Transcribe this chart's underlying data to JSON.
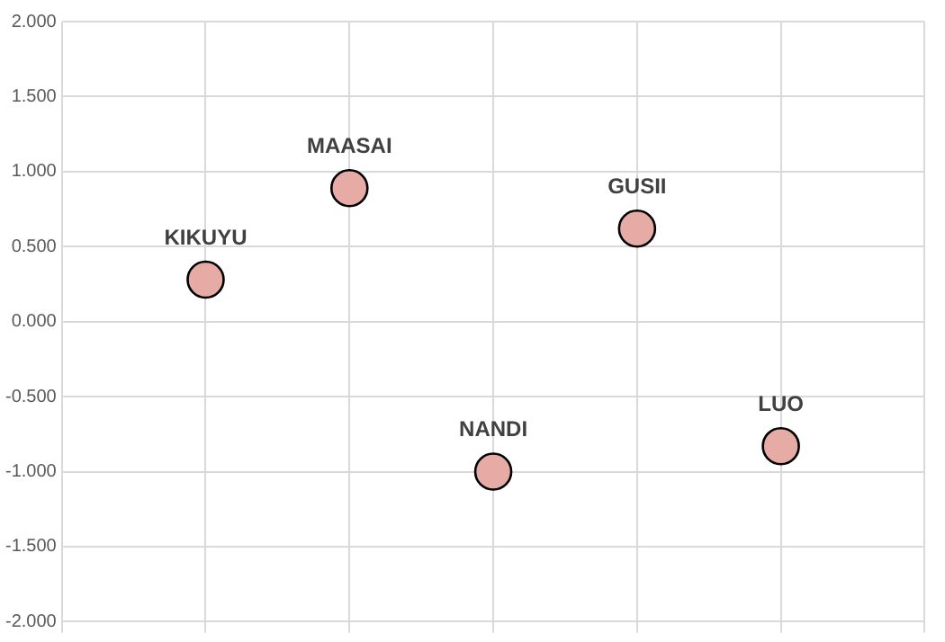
{
  "chart_data": {
    "type": "scatter",
    "categories": [
      null,
      null,
      null,
      null,
      null
    ],
    "series": [
      {
        "name": "KIKUYU",
        "color": "#e6aba4",
        "values": [
          0.28,
          null,
          null,
          null,
          null
        ]
      },
      {
        "name": "MAASAI",
        "color": "#e6aba4",
        "values": [
          null,
          0.89,
          null,
          null,
          null
        ]
      },
      {
        "name": "NANDI",
        "color": "#e6aba4",
        "values": [
          null,
          null,
          -1.0,
          null,
          null
        ]
      },
      {
        "name": "GUSII",
        "color": "#e6aba4",
        "values": [
          null,
          null,
          null,
          0.62,
          null
        ]
      },
      {
        "name": "LUO",
        "color": "#e6aba4",
        "values": [
          null,
          null,
          null,
          null,
          -0.83
        ]
      }
    ],
    "ylim": [
      -2,
      2
    ],
    "yticks": [
      {
        "value": -2,
        "label": "-2.000"
      },
      {
        "value": -1.5,
        "label": "-1.500"
      },
      {
        "value": -1,
        "label": "-1.000"
      },
      {
        "value": -0.5,
        "label": "-0.500"
      },
      {
        "value": 0,
        "label": "0.000"
      },
      {
        "value": 0.5,
        "label": "0.500"
      },
      {
        "value": 1,
        "label": "1.000"
      },
      {
        "value": 1.5,
        "label": "1.500"
      },
      {
        "value": 2,
        "label": "2.000"
      }
    ],
    "grid": true,
    "legend": false,
    "marker": "circle",
    "tick_labels": "y"
  }
}
